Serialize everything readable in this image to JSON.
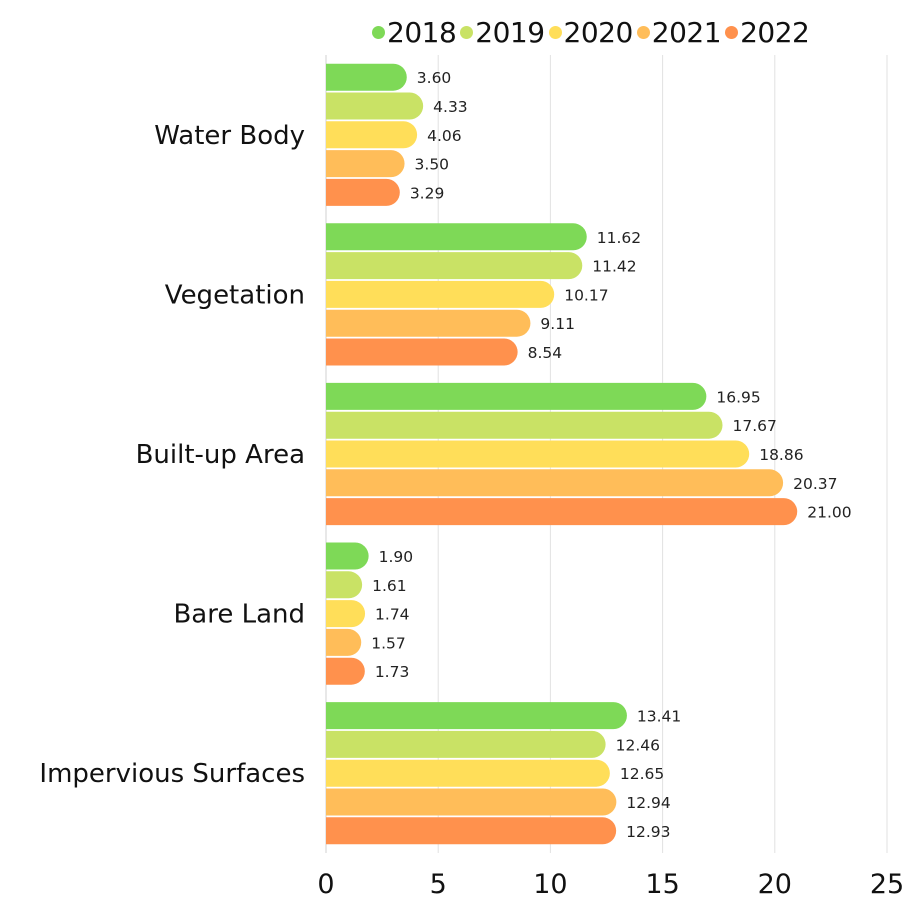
{
  "chart_data": {
    "type": "bar",
    "orientation": "horizontal",
    "title": "",
    "xlabel": "",
    "ylabel": "",
    "categories": [
      "Water Body",
      "Vegetation",
      "Built-up Area",
      "Bare Land",
      "Impervious Surfaces"
    ],
    "series": [
      {
        "name": "2018",
        "color": "#7ED957",
        "values": [
          3.6,
          11.62,
          16.95,
          1.9,
          13.41
        ]
      },
      {
        "name": "2019",
        "color": "#C9E265",
        "values": [
          4.33,
          11.42,
          17.67,
          1.61,
          12.46
        ]
      },
      {
        "name": "2020",
        "color": "#FFDE59",
        "values": [
          4.06,
          10.17,
          18.86,
          1.74,
          12.65
        ]
      },
      {
        "name": "2021",
        "color": "#FFBD59",
        "values": [
          3.5,
          9.11,
          20.37,
          1.57,
          12.94
        ]
      },
      {
        "name": "2022",
        "color": "#FF914D",
        "values": [
          3.29,
          8.54,
          21.0,
          1.73,
          12.93
        ]
      }
    ],
    "value_labels": [
      [
        "3.60",
        "11.62",
        "16.95",
        "1.90",
        "13.41"
      ],
      [
        "4.33",
        "11.42",
        "17.67",
        "1.61",
        "12.46"
      ],
      [
        "4.06",
        "10.17",
        "18.86",
        "1.74",
        "12.65"
      ],
      [
        "3.50",
        "9.11",
        "20.37",
        "1.57",
        "12.94"
      ],
      [
        "3.29",
        "8.54",
        "21.00",
        "1.73",
        "12.93"
      ]
    ],
    "xlim": [
      0,
      25
    ],
    "xticks": [
      0,
      5,
      10,
      15,
      20,
      25
    ],
    "xtick_labels": [
      "0",
      "5",
      "10",
      "15",
      "20",
      "25"
    ],
    "grid": "vertical",
    "legend_position": "top"
  }
}
